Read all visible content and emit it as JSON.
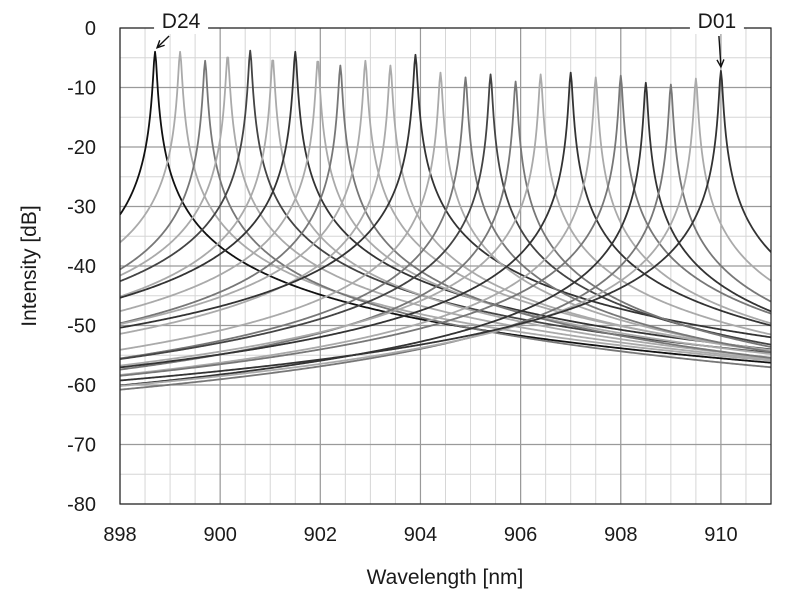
{
  "chart_data": {
    "type": "line",
    "xlabel": "Wavelength [nm]",
    "ylabel": "Intensity [dB]",
    "xlim": [
      898,
      911
    ],
    "ylim": [
      -80,
      0
    ],
    "x_ticks": [
      898,
      900,
      902,
      904,
      906,
      908,
      910
    ],
    "y_ticks": [
      0,
      -10,
      -20,
      -30,
      -40,
      -50,
      -60,
      -70,
      -80
    ],
    "x_tick_labels": [
      "898",
      "900",
      "902",
      "904",
      "906",
      "908",
      "910"
    ],
    "y_tick_labels": [
      "0",
      "-10",
      "-20",
      "-30",
      "-40",
      "-50",
      "-60",
      "-70",
      "-80"
    ],
    "grid": {
      "major": true,
      "minor": true,
      "x_minor_step": 0.5,
      "y_minor_step": 5
    },
    "peak_linewidth_nm": 0.06,
    "noise_floor_db": -65,
    "series": [
      {
        "peak_nm": 898.7,
        "peak_db": -4,
        "color": "#111111"
      },
      {
        "peak_nm": 899.2,
        "peak_db": -4,
        "color": "#aaaaaa"
      },
      {
        "peak_nm": 899.7,
        "peak_db": -5.5,
        "color": "#777777"
      },
      {
        "peak_nm": 900.15,
        "peak_db": -4.5,
        "color": "#aaaaaa"
      },
      {
        "peak_nm": 900.6,
        "peak_db": -3.8,
        "color": "#444444"
      },
      {
        "peak_nm": 901.05,
        "peak_db": -5,
        "color": "#aaaaaa"
      },
      {
        "peak_nm": 901.5,
        "peak_db": -4,
        "color": "#333333"
      },
      {
        "peak_nm": 901.95,
        "peak_db": -5.2,
        "color": "#aaaaaa"
      },
      {
        "peak_nm": 902.4,
        "peak_db": -6.3,
        "color": "#777777"
      },
      {
        "peak_nm": 902.9,
        "peak_db": -5.5,
        "color": "#aaaaaa"
      },
      {
        "peak_nm": 903.4,
        "peak_db": -6.3,
        "color": "#aaaaaa"
      },
      {
        "peak_nm": 903.9,
        "peak_db": -4.5,
        "color": "#333333"
      },
      {
        "peak_nm": 904.4,
        "peak_db": -7.5,
        "color": "#aaaaaa"
      },
      {
        "peak_nm": 904.9,
        "peak_db": -8.3,
        "color": "#777777"
      },
      {
        "peak_nm": 905.4,
        "peak_db": -7.8,
        "color": "#444444"
      },
      {
        "peak_nm": 905.9,
        "peak_db": -9,
        "color": "#777777"
      },
      {
        "peak_nm": 906.4,
        "peak_db": -7.8,
        "color": "#aaaaaa"
      },
      {
        "peak_nm": 907.0,
        "peak_db": -7.5,
        "color": "#333333"
      },
      {
        "peak_nm": 907.5,
        "peak_db": -8.3,
        "color": "#aaaaaa"
      },
      {
        "peak_nm": 908.0,
        "peak_db": -8,
        "color": "#777777"
      },
      {
        "peak_nm": 908.5,
        "peak_db": -9.2,
        "color": "#333333"
      },
      {
        "peak_nm": 909.0,
        "peak_db": -9.5,
        "color": "#777777"
      },
      {
        "peak_nm": 909.5,
        "peak_db": -8.5,
        "color": "#aaaaaa"
      },
      {
        "peak_nm": 910.0,
        "peak_db": -7.2,
        "color": "#333333"
      }
    ],
    "annotations": [
      {
        "text": "D24",
        "x": 898.7,
        "y": -4
      },
      {
        "text": "D01",
        "x": 910.0,
        "y": -7.2
      }
    ]
  }
}
